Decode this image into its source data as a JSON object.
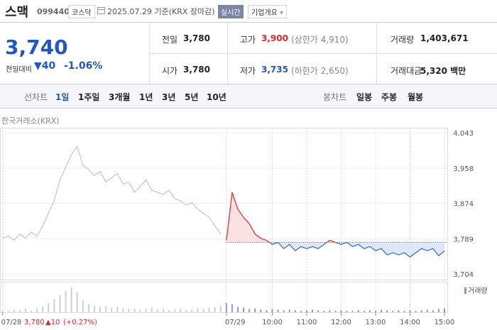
{
  "header": {
    "name": "스맥",
    "code": "099440",
    "market": "코스닥",
    "date": "2025.07.29 기준(KRX 장마감)",
    "realtime": "실시간",
    "company": "기업개요"
  },
  "quote": {
    "price": "3,740",
    "change_label": "전일대비",
    "change": "▼40",
    "rate": "-1.06%",
    "rows": [
      [
        [
          "전일",
          "3,780",
          ""
        ],
        [
          "고가",
          "3,900",
          "(상한가 4,910)"
        ],
        [
          "거래량",
          "1,403,671",
          ""
        ]
      ],
      [
        [
          "시가",
          "3,780",
          ""
        ],
        [
          "저가",
          "3,735",
          "(하한가 2,650)"
        ],
        [
          "거래대금",
          "5,320 백만",
          ""
        ]
      ]
    ]
  },
  "tabs": {
    "line_label": "선차트",
    "line": [
      "1일",
      "1주일",
      "3개월",
      "1년",
      "3년",
      "5년",
      "10년"
    ],
    "candle_label": "봉차트",
    "candle": [
      "일봉",
      "주봉",
      "월봉"
    ]
  },
  "chart_data": {
    "type": "line",
    "source": "한국거래소(KRX)",
    "ylim": [
      3689,
      4055
    ],
    "yticks": [
      {
        "value": 4043,
        "label": "4,043"
      },
      {
        "value": 3958,
        "label": "3,958"
      },
      {
        "value": 3874,
        "label": "3,874"
      },
      {
        "value": 3789,
        "label": "3,789"
      },
      {
        "value": 3704,
        "label": "3,704"
      }
    ],
    "xticks": [
      {
        "value": 0,
        "label": "07/28"
      },
      {
        "value": 39,
        "label": "07/29"
      },
      {
        "value": 47,
        "label": "10:00"
      },
      {
        "value": 53,
        "label": "11:00"
      },
      {
        "value": 59,
        "label": "12:00"
      },
      {
        "value": 65,
        "label": "13:00"
      },
      {
        "value": 71,
        "label": "14:00"
      },
      {
        "value": 77,
        "label": "15:00"
      }
    ],
    "reference": 3780,
    "series": [
      {
        "color": "#c6c6c6",
        "values": [
          3790,
          3795,
          3785,
          3800,
          3790,
          3805,
          3795,
          3820,
          3850,
          3880,
          3930,
          3960,
          3990,
          4010,
          3965,
          3955,
          3940,
          3950,
          3925,
          3935,
          3945,
          3920,
          3925,
          3900,
          3915,
          3930,
          3905,
          3900,
          3895,
          3905,
          3885,
          3880,
          3870,
          3875,
          3860,
          3850,
          3840,
          3820,
          3800,
          null,
          null,
          null,
          null,
          null,
          null,
          null,
          null,
          null,
          null,
          null,
          null,
          null,
          null,
          null,
          null,
          null,
          null,
          null,
          null,
          null,
          null,
          null,
          null,
          null,
          null,
          null,
          null,
          null,
          null,
          null,
          null,
          null,
          null,
          null,
          null,
          null,
          null,
          null
        ]
      },
      {
        "color": "#e0262e",
        "below_color": "#2f6ad0",
        "values": [
          null,
          null,
          null,
          null,
          null,
          null,
          null,
          null,
          null,
          null,
          null,
          null,
          null,
          null,
          null,
          null,
          null,
          null,
          null,
          null,
          null,
          null,
          null,
          null,
          null,
          null,
          null,
          null,
          null,
          null,
          null,
          null,
          null,
          null,
          null,
          null,
          null,
          null,
          null,
          3785,
          3900,
          3860,
          3840,
          3825,
          3800,
          3790,
          3785,
          3775,
          3780,
          3765,
          3775,
          3760,
          3770,
          3765,
          3770,
          3765,
          3775,
          3785,
          3780,
          3775,
          3780,
          3770,
          3775,
          3765,
          3770,
          3760,
          3765,
          3750,
          3755,
          3750,
          3755,
          3745,
          3755,
          3765,
          3760,
          3765,
          3748,
          3760
        ]
      }
    ],
    "volume": {
      "label": "거래량",
      "vlim": [
        0,
        45
      ],
      "series": [
        {
          "color": "#cfcfcf",
          "values": [
            3,
            2,
            4,
            3,
            5,
            2,
            6,
            9,
            14,
            20,
            26,
            32,
            38,
            30,
            18,
            12,
            10,
            8,
            9,
            7,
            8,
            6,
            5,
            6,
            4,
            5,
            7,
            4,
            5,
            3,
            4,
            5,
            3,
            4,
            6,
            5,
            7,
            8,
            10,
            null,
            null,
            null,
            null,
            null,
            null,
            null,
            null,
            null,
            null,
            null,
            null,
            null,
            null,
            null,
            null,
            null,
            null,
            null,
            null,
            null,
            null,
            null,
            null,
            null,
            null,
            null,
            null,
            null,
            null,
            null,
            null,
            null,
            null,
            null,
            null,
            null,
            null,
            null
          ]
        },
        {
          "color": "#9d90cc",
          "values": [
            null,
            null,
            null,
            null,
            null,
            null,
            null,
            null,
            null,
            null,
            null,
            null,
            null,
            null,
            null,
            null,
            null,
            null,
            null,
            null,
            null,
            null,
            null,
            null,
            null,
            null,
            null,
            null,
            null,
            null,
            null,
            null,
            null,
            null,
            null,
            null,
            null,
            null,
            null,
            14,
            12,
            8,
            7,
            5,
            6,
            4,
            3,
            5,
            4,
            3,
            4,
            3,
            2,
            3,
            4,
            3,
            2,
            3,
            2,
            3,
            2,
            2,
            3,
            2,
            3,
            2,
            4,
            3,
            2,
            3,
            2,
            3,
            2,
            3,
            4,
            3,
            5,
            6
          ]
        }
      ]
    },
    "footer": {
      "price": "3,780",
      "change": "▲10",
      "rate": "(+0.27%)"
    }
  }
}
